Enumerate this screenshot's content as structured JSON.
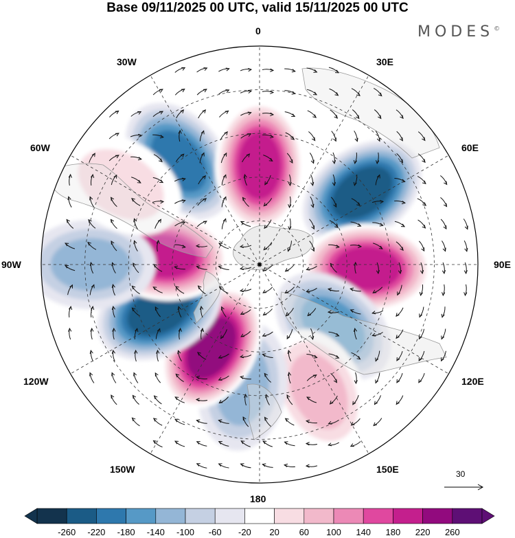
{
  "title": "Base 09/11/2025 00 UTC, valid 15/11/2025 00 UTC",
  "brand": "MODES",
  "brand_mark": "©",
  "longitude_labels": {
    "n0": "0",
    "e30": "30E",
    "e60": "60E",
    "e90": "90E",
    "e120": "120E",
    "e150": "150E",
    "s180": "180",
    "w150": "150W",
    "w120": "120W",
    "w90": "90W",
    "w60": "60W",
    "w30": "30W"
  },
  "reference_vector": {
    "label": "30"
  },
  "colorbar": {
    "ticks": [
      "-260",
      "-220",
      "-180",
      "-140",
      "-100",
      "-60",
      "-20",
      "20",
      "60",
      "100",
      "140",
      "180",
      "220",
      "260"
    ],
    "colors": [
      "#13334d",
      "#1b5b86",
      "#2e78ad",
      "#5699c6",
      "#94b6d6",
      "#c5d0e3",
      "#e6e6f0",
      "#ffffff",
      "#f8dde3",
      "#f2b9cb",
      "#ec89b6",
      "#e0489f",
      "#c41f8d",
      "#920a7e",
      "#5e0f75"
    ]
  },
  "anomaly_centers": [
    {
      "name": "low-north-atlantic",
      "lon": -38,
      "colat": 45,
      "value": -200
    },
    {
      "name": "high-greenwich",
      "lon": 0,
      "colat": 34,
      "value": 230
    },
    {
      "name": "low-east-europe",
      "lon": 55,
      "colat": 43,
      "value": -240
    },
    {
      "name": "high-siberia",
      "lon": 92,
      "colat": 37,
      "value": 230
    },
    {
      "name": "low-east-siberia",
      "lon": 130,
      "colat": 33,
      "value": -150
    },
    {
      "name": "high-north-pacific",
      "lon": 155,
      "colat": 48,
      "value": 100
    },
    {
      "name": "low-bering",
      "lon": -172,
      "colat": 42,
      "value": -100
    },
    {
      "name": "high-alaska",
      "lon": -150,
      "colat": 33,
      "value": 260
    },
    {
      "name": "low-canada",
      "lon": -115,
      "colat": 38,
      "value": -250
    },
    {
      "name": "high-hudson",
      "lon": -85,
      "colat": 33,
      "value": 230
    },
    {
      "name": "low-west-atlantic",
      "lon": -90,
      "colat": 58,
      "value": -100
    },
    {
      "name": "high-labrador-sea",
      "lon": -60,
      "colat": 55,
      "value": 80
    }
  ]
}
